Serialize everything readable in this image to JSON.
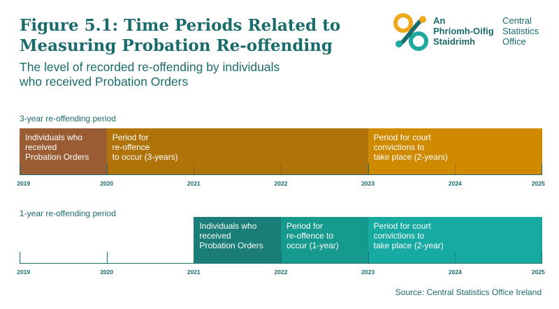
{
  "header": {
    "title_line1": "Figure 5.1: Time Periods Related to",
    "title_line2": "Measuring Probation Re-offending",
    "subtitle_line1": "The level of recorded re-offending by individuals",
    "subtitle_line2": "who received Probation Orders"
  },
  "logo": {
    "irish": [
      "An",
      "Phríomh-Oifig",
      "Staidrimh"
    ],
    "english": [
      "Central",
      "Statistics",
      "Office"
    ]
  },
  "axis_years": [
    "2019",
    "2020",
    "2021",
    "2022",
    "2023",
    "2024",
    "2025"
  ],
  "colors": {
    "brown": "#9a5d33",
    "ochre": "#b07309",
    "gold": "#d08a00",
    "teal_dark": "#1a7d78",
    "teal_mid": "#179a8e",
    "teal_light": "#16aaa2",
    "text": "#1a6b6b"
  },
  "timelines": [
    {
      "label": "3-year re-offending period",
      "segments": [
        {
          "start": 2019,
          "end": 2020,
          "color": "#9a5d33",
          "lines": [
            "Individuals who",
            "received",
            "Probation Orders"
          ]
        },
        {
          "start": 2020,
          "end": 2023,
          "color": "#b07309",
          "lines": [
            "Period for",
            "re-offence",
            "to occur (3-years)"
          ]
        },
        {
          "start": 2023,
          "end": 2025,
          "color": "#d08a00",
          "lines": [
            "Period for court",
            "convictions to",
            "take place (2-years)"
          ]
        }
      ]
    },
    {
      "label": "1-year re-offending period",
      "segments": [
        {
          "start": 2021,
          "end": 2022,
          "color": "#1a7d78",
          "lines": [
            "Individuals who",
            "received",
            "Probation Orders"
          ]
        },
        {
          "start": 2022,
          "end": 2023,
          "color": "#179a8e",
          "lines": [
            "Period for",
            "re-offence to",
            "occur (1-year)"
          ]
        },
        {
          "start": 2023,
          "end": 2025,
          "color": "#16aaa2",
          "lines": [
            "Period for court",
            "convictions to",
            "take place (2-year)"
          ]
        }
      ]
    }
  ],
  "source": "Source: Central Statistics Office Ireland"
}
